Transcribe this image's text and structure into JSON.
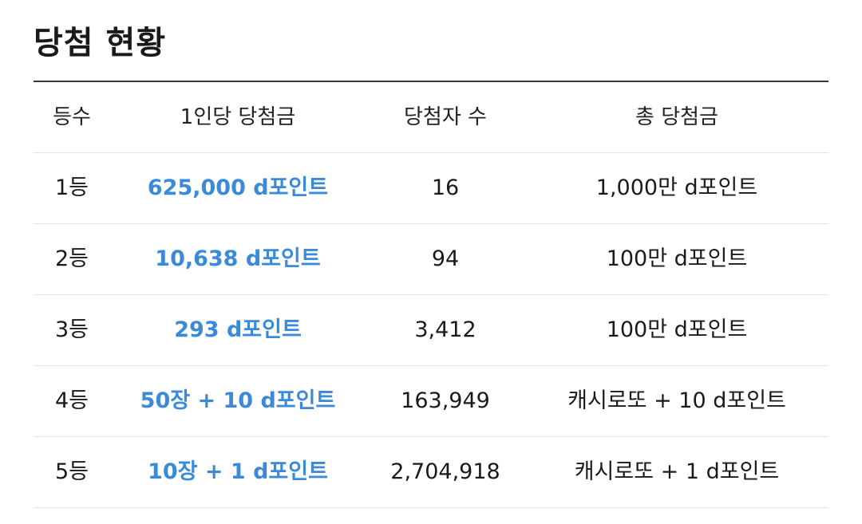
{
  "title": "당첨 현황",
  "accent_color": "#3b8ad9",
  "table": {
    "headers": {
      "rank": "등수",
      "prize_per_person": "1인당 당첨금",
      "winner_count": "당첨자 수",
      "total_prize": "총 당첨금"
    },
    "rows": [
      {
        "rank": "1등",
        "prize_per_person": "625,000 d포인트",
        "winner_count": "16",
        "total_prize": "1,000만 d포인트"
      },
      {
        "rank": "2등",
        "prize_per_person": "10,638 d포인트",
        "winner_count": "94",
        "total_prize": "100만 d포인트"
      },
      {
        "rank": "3등",
        "prize_per_person": "293 d포인트",
        "winner_count": "3,412",
        "total_prize": "100만 d포인트"
      },
      {
        "rank": "4등",
        "prize_per_person": "50장 + 10 d포인트",
        "winner_count": "163,949",
        "total_prize": "캐시로또 + 10 d포인트"
      },
      {
        "rank": "5등",
        "prize_per_person": "10장 + 1 d포인트",
        "winner_count": "2,704,918",
        "total_prize": "캐시로또 + 1 d포인트"
      }
    ]
  }
}
